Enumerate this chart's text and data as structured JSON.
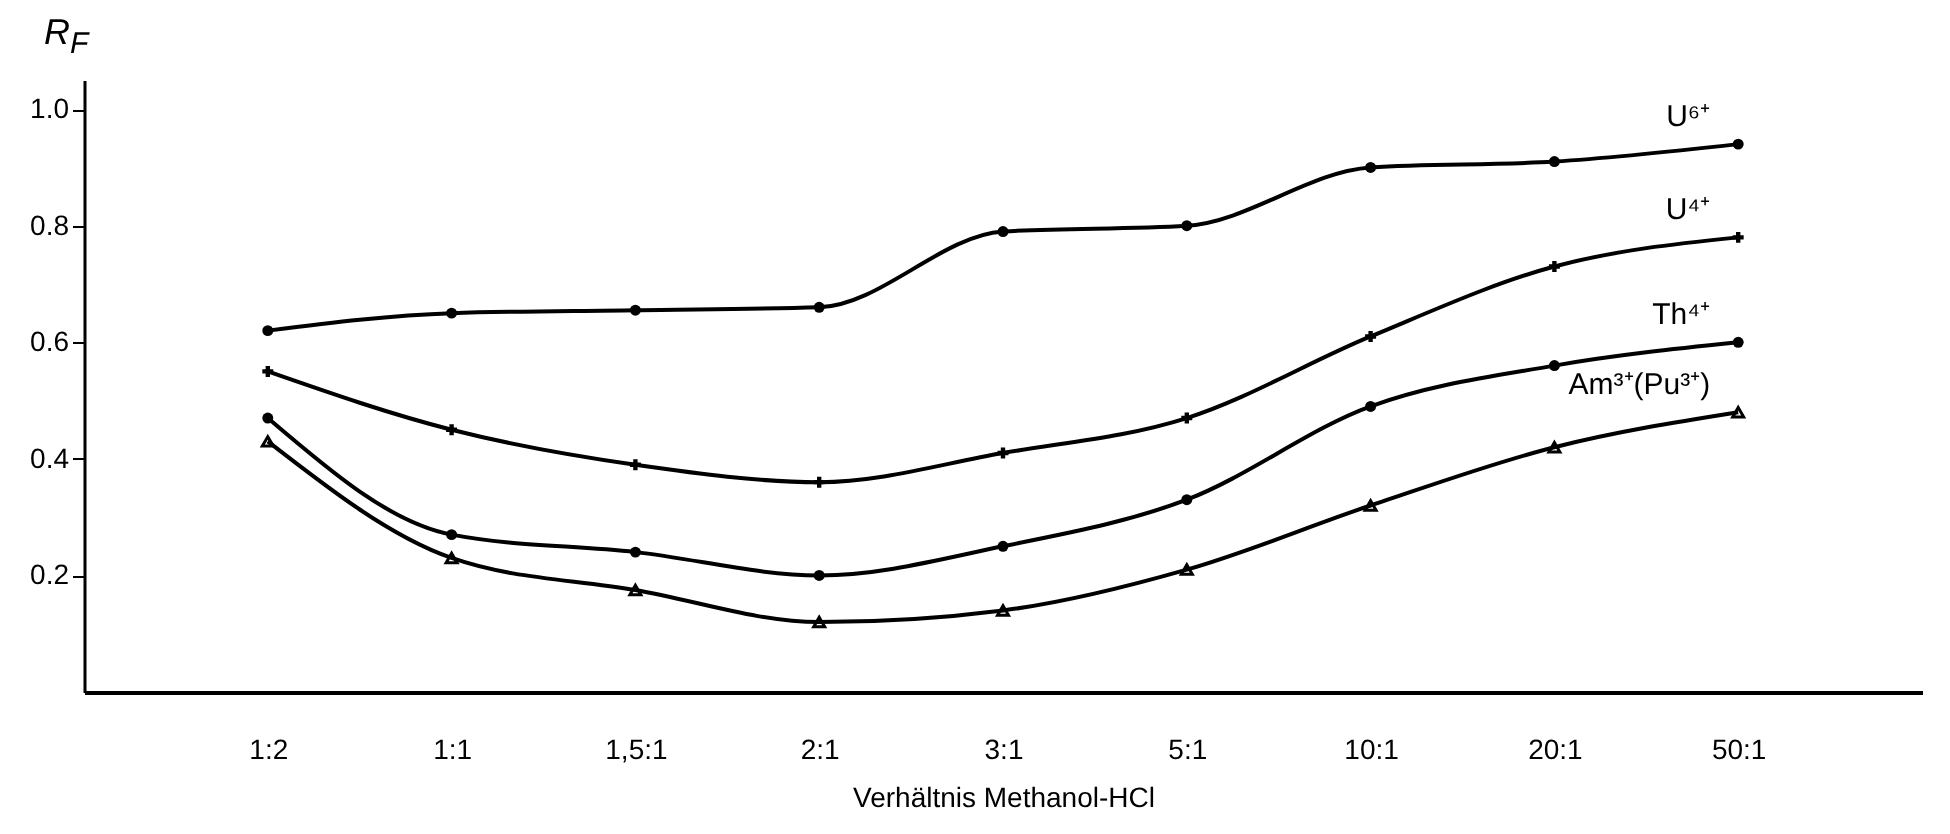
{
  "chart_data": {
    "type": "line",
    "xlabel": "Verhältnis Methanol-HCl",
    "ylabel": "R$_{F}$",
    "categories": [
      "1:2",
      "1:1",
      "1,5:1",
      "2:1",
      "3:1",
      "5:1",
      "10:1",
      "20:1",
      "50:1"
    ],
    "series": [
      {
        "name": "U⁶⁺",
        "color": "#000000",
        "marker": "circle",
        "values": [
          0.62,
          0.65,
          0.655,
          0.66,
          0.79,
          0.8,
          0.9,
          0.91,
          0.94
        ]
      },
      {
        "name": "U⁴⁺",
        "color": "#000000",
        "marker": "cross",
        "values": [
          0.55,
          0.45,
          0.39,
          0.36,
          0.41,
          0.47,
          0.61,
          0.73,
          0.78
        ]
      },
      {
        "name": "Th⁴⁺",
        "color": "#000000",
        "marker": "circle",
        "values": [
          0.47,
          0.27,
          0.24,
          0.2,
          0.25,
          0.33,
          0.49,
          0.56,
          0.6
        ]
      },
      {
        "name": "Am³⁺(Pu³⁺)",
        "color": "#000000",
        "marker": "triangle",
        "values": [
          0.43,
          0.23,
          0.175,
          0.12,
          0.14,
          0.21,
          0.32,
          0.42,
          0.48
        ]
      }
    ],
    "ylim": [
      0,
      1.05
    ],
    "yticks": [
      0.2,
      0.4,
      0.6,
      0.8,
      {
        "value": 1,
        "label": "1.0"
      }
    ],
    "grid": false,
    "legend": false,
    "line_style": "solid"
  }
}
